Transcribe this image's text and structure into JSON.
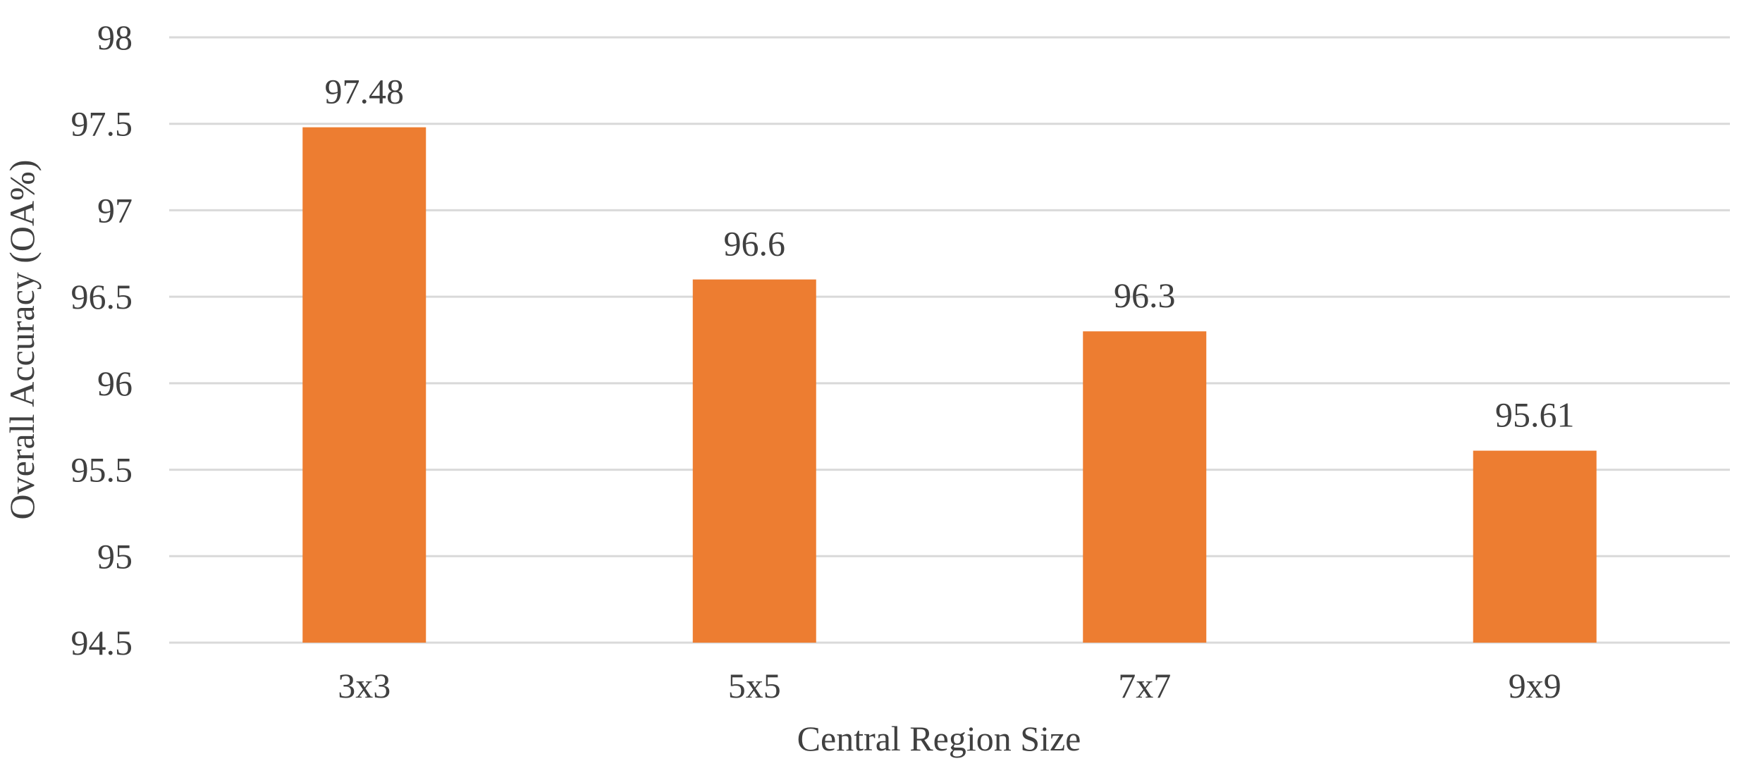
{
  "chart_data": {
    "type": "bar",
    "title": "",
    "xlabel": "Central Region Size",
    "ylabel": "Overall Accuracy (OA%)",
    "categories": [
      "3x3",
      "5x5",
      "7x7",
      "9x9"
    ],
    "values": [
      97.48,
      96.6,
      96.3,
      95.61
    ],
    "data_labels": [
      "97.48",
      "96.6",
      "96.3",
      "95.61"
    ],
    "ylim": [
      94.5,
      98
    ],
    "yticks": [
      94.5,
      95,
      95.5,
      96,
      96.5,
      97,
      97.5,
      98
    ],
    "ytick_labels": [
      "94.5",
      "95",
      "95.5",
      "96",
      "96.5",
      "97",
      "97.5",
      "98"
    ],
    "grid": true,
    "legend": "none",
    "colors": {
      "bar": "#ED7D31",
      "grid": "#D9D9D9",
      "text": "#404040"
    }
  }
}
